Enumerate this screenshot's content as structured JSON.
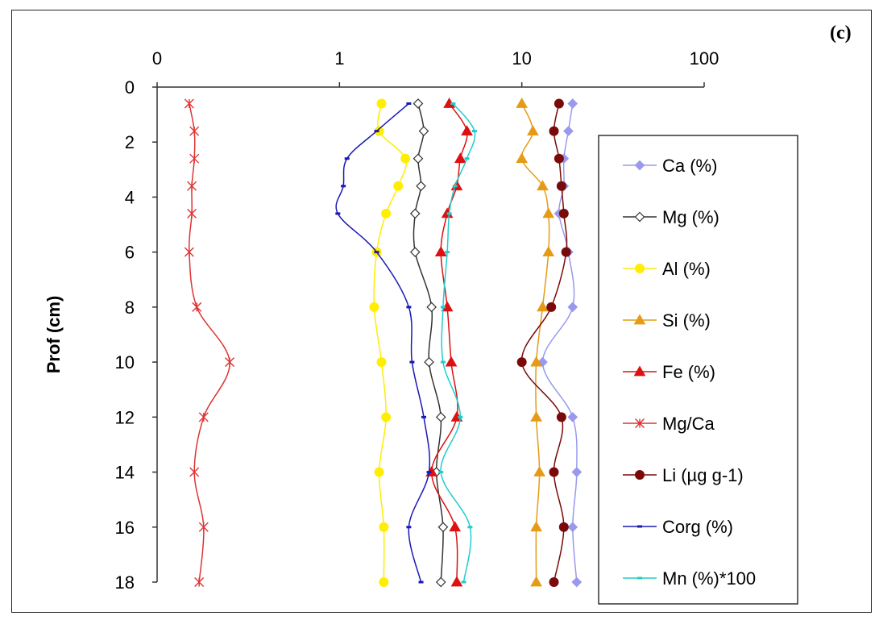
{
  "panel_label": "(c)",
  "chart_data": {
    "type": "line",
    "xscale": "log",
    "xticks": [
      {
        "value": 0.1,
        "label": "0"
      },
      {
        "value": 1,
        "label": "1"
      },
      {
        "value": 10,
        "label": "10"
      },
      {
        "value": 100,
        "label": "100"
      }
    ],
    "xlim": [
      0.1,
      100
    ],
    "xlabel": "",
    "ylabel": "Prof (cm)",
    "ylim": [
      0,
      18
    ],
    "yticks": [
      0,
      2,
      4,
      6,
      8,
      10,
      12,
      14,
      16,
      18
    ],
    "yinverted": true,
    "grid": false,
    "legend": "right",
    "series": [
      {
        "name": "Ca (%)",
        "color": "#9999ee",
        "marker": "diamond-filled",
        "points": [
          [
            19,
            0.6
          ],
          [
            18,
            1.6
          ],
          [
            17,
            2.6
          ],
          [
            17,
            3.6
          ],
          [
            16,
            4.6
          ],
          [
            18,
            6
          ],
          [
            19,
            8
          ],
          [
            13,
            10
          ],
          [
            19,
            12
          ],
          [
            20,
            14
          ],
          [
            19,
            16
          ],
          [
            20,
            18
          ]
        ]
      },
      {
        "name": "Mg (%)",
        "color": "#333333",
        "marker": "diamond-open",
        "points": [
          [
            2.7,
            0.6
          ],
          [
            2.9,
            1.6
          ],
          [
            2.7,
            2.6
          ],
          [
            2.8,
            3.6
          ],
          [
            2.6,
            4.6
          ],
          [
            2.6,
            6
          ],
          [
            3.2,
            8
          ],
          [
            3.1,
            10
          ],
          [
            3.6,
            12
          ],
          [
            3.4,
            14
          ],
          [
            3.7,
            16
          ],
          [
            3.6,
            18
          ]
        ]
      },
      {
        "name": "Al (%)",
        "color": "#ffee00",
        "marker": "circle-filled",
        "points": [
          [
            1.7,
            0.6
          ],
          [
            1.65,
            1.6
          ],
          [
            2.3,
            2.6
          ],
          [
            2.1,
            3.6
          ],
          [
            1.8,
            4.6
          ],
          [
            1.6,
            6
          ],
          [
            1.55,
            8
          ],
          [
            1.7,
            10
          ],
          [
            1.8,
            12
          ],
          [
            1.65,
            14
          ],
          [
            1.75,
            16
          ],
          [
            1.75,
            18
          ]
        ]
      },
      {
        "name": "Si (%)",
        "color": "#e69b16",
        "marker": "triangle-filled",
        "points": [
          [
            10,
            0.6
          ],
          [
            11.5,
            1.6
          ],
          [
            10,
            2.6
          ],
          [
            13,
            3.6
          ],
          [
            14,
            4.6
          ],
          [
            14,
            6
          ],
          [
            13,
            8
          ],
          [
            12,
            10
          ],
          [
            12,
            12
          ],
          [
            12.5,
            14
          ],
          [
            12,
            16
          ],
          [
            12,
            18
          ]
        ]
      },
      {
        "name": "Fe (%)",
        "color": "#dd1111",
        "marker": "triangle-filled",
        "points": [
          [
            4,
            0.6
          ],
          [
            5,
            1.6
          ],
          [
            4.6,
            2.6
          ],
          [
            4.4,
            3.6
          ],
          [
            3.9,
            4.6
          ],
          [
            3.6,
            6
          ],
          [
            3.9,
            8
          ],
          [
            4.1,
            10
          ],
          [
            4.4,
            12
          ],
          [
            3.2,
            14
          ],
          [
            4.3,
            16
          ],
          [
            4.4,
            18
          ]
        ]
      },
      {
        "name": "Mg/Ca",
        "color": "#dd3333",
        "marker": "star",
        "points": [
          [
            0.15,
            0.6
          ],
          [
            0.16,
            1.6
          ],
          [
            0.16,
            2.6
          ],
          [
            0.155,
            3.6
          ],
          [
            0.155,
            4.6
          ],
          [
            0.15,
            6
          ],
          [
            0.165,
            8
          ],
          [
            0.25,
            10
          ],
          [
            0.18,
            12
          ],
          [
            0.16,
            14
          ],
          [
            0.18,
            16
          ],
          [
            0.17,
            18
          ]
        ]
      },
      {
        "name": "Li (µg g-1)",
        "color": "#7a0a0a",
        "marker": "circle-filled",
        "points": [
          [
            16,
            0.6
          ],
          [
            15,
            1.6
          ],
          [
            16,
            2.6
          ],
          [
            16.5,
            3.6
          ],
          [
            17,
            4.6
          ],
          [
            17.5,
            6
          ],
          [
            14.5,
            8
          ],
          [
            10,
            10
          ],
          [
            16.5,
            12
          ],
          [
            15,
            14
          ],
          [
            17,
            16
          ],
          [
            15,
            18
          ]
        ]
      },
      {
        "name": "Corg  (%)",
        "color": "#1a1ab4",
        "marker": "dash",
        "points": [
          [
            2.4,
            0.6
          ],
          [
            1.6,
            1.6
          ],
          [
            1.1,
            2.6
          ],
          [
            1.05,
            3.6
          ],
          [
            0.98,
            4.6
          ],
          [
            1.6,
            6
          ],
          [
            2.4,
            8
          ],
          [
            2.5,
            10
          ],
          [
            2.9,
            12
          ],
          [
            3.1,
            14
          ],
          [
            2.4,
            16
          ],
          [
            2.8,
            18
          ]
        ]
      },
      {
        "name": "Mn (%)*100",
        "color": "#22cccc",
        "marker": "dash",
        "points": [
          [
            4.2,
            0.6
          ],
          [
            5.5,
            1.6
          ],
          [
            5,
            2.6
          ],
          [
            4.3,
            3.6
          ],
          [
            4,
            4.6
          ],
          [
            3.9,
            6
          ],
          [
            3.7,
            8
          ],
          [
            3.7,
            10
          ],
          [
            4.6,
            12
          ],
          [
            3.6,
            14
          ],
          [
            5.2,
            16
          ],
          [
            4.8,
            18
          ]
        ]
      }
    ]
  }
}
